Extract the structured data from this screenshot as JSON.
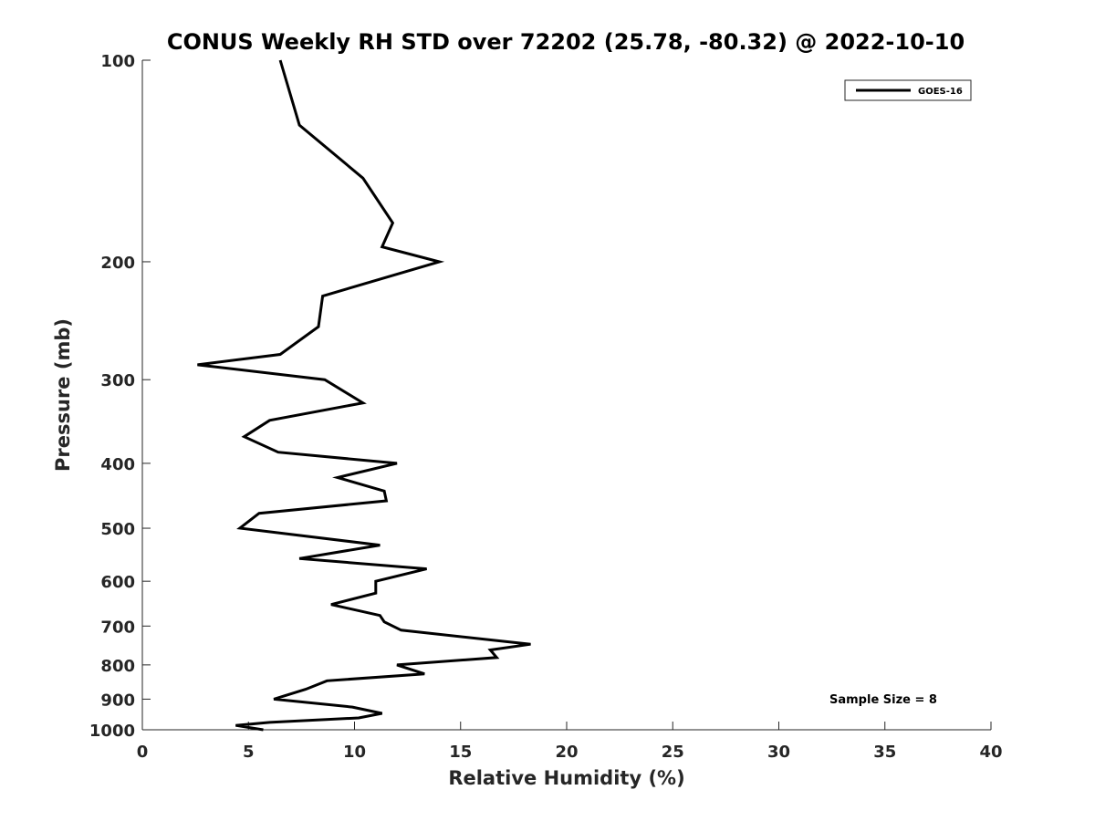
{
  "chart_data": {
    "type": "line",
    "title": "CONUS Weekly RH STD over 72202 (25.78, -80.32) @ 2022-10-10",
    "xlabel": "Relative Humidity (%)",
    "ylabel": "Pressure (mb)",
    "xlim": [
      0,
      40
    ],
    "ylim": [
      100,
      1000
    ],
    "y_scale": "log",
    "y_reversed": true,
    "xticks": [
      0,
      5,
      10,
      15,
      20,
      25,
      30,
      35,
      40
    ],
    "yticks": [
      100,
      200,
      300,
      400,
      500,
      600,
      700,
      800,
      900,
      1000
    ],
    "grid": false,
    "legend_position": "top-right",
    "annotation": "Sample Size = 8",
    "series": [
      {
        "name": "GOES-16",
        "color": "#000000",
        "x": [
          6.5,
          7.4,
          10.4,
          11.8,
          11.3,
          14.0,
          8.5,
          8.3,
          6.5,
          2.6,
          8.6,
          10.4,
          6.0,
          4.8,
          6.4,
          12.0,
          9.2,
          11.4,
          11.5,
          5.5,
          4.6,
          11.2,
          7.4,
          13.4,
          11.0,
          11.0,
          8.9,
          11.2,
          11.4,
          12.2,
          18.3,
          16.4,
          16.7,
          12.0,
          13.3,
          8.7,
          7.7,
          6.2,
          9.9,
          11.3,
          10.2,
          6.0,
          4.4,
          5.7
        ],
        "y": [
          100,
          125,
          150,
          175,
          190,
          200,
          225,
          250,
          275,
          285,
          300,
          325,
          345,
          365,
          385,
          400,
          420,
          440,
          455,
          475,
          500,
          530,
          555,
          575,
          600,
          625,
          650,
          675,
          690,
          710,
          745,
          760,
          780,
          800,
          825,
          845,
          870,
          900,
          925,
          945,
          960,
          975,
          985,
          1000
        ]
      }
    ]
  }
}
